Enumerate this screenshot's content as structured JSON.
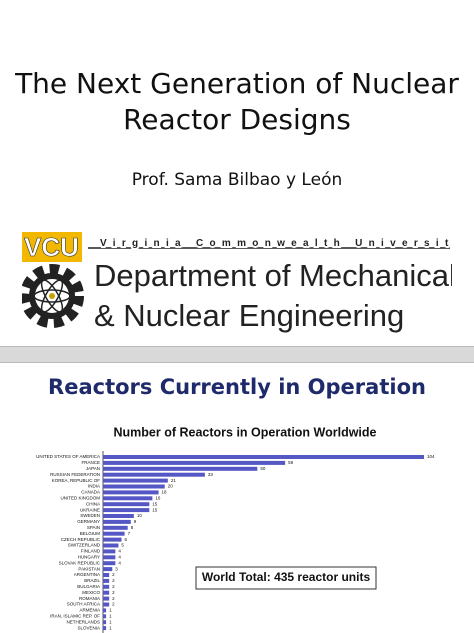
{
  "slides": [
    {
      "title": "The Next Generation of Nuclear Reactor Designs",
      "author": "Prof. Sama Bilbao y León",
      "logo": {
        "mark": "VCU",
        "university": "Virginia Commonwealth University",
        "line1": "Department of Mechanical",
        "line2": "& Nuclear Engineering"
      }
    },
    {
      "title": "Reactors Currently in Operation"
    }
  ],
  "chart_data": {
    "type": "hbar",
    "title": "Number of Reactors in Operation Worldwide",
    "annotation": "World Total:  435 reactor units",
    "color": "#5457c4",
    "categories": [
      "UNITED STATES OF AMERICA",
      "FRANCE",
      "JAPAN",
      "RUSSIAN FEDERATION",
      "KOREA, REPUBLIC OF",
      "INDIA",
      "CANADA",
      "UNITED KINGDOM",
      "CHINA",
      "UKRAINE",
      "SWEDEN",
      "GERMANY",
      "SPAIN",
      "BELGIUM",
      "CZECH REPUBLIC",
      "SWITZERLAND",
      "FINLAND",
      "HUNGARY",
      "SLOVAK REPUBLIC",
      "PAKISTAN",
      "ARGENTINA",
      "BRAZIL",
      "BULGARIA",
      "MEXICO",
      "ROMANIA",
      "SOUTH AFRICA",
      "ARMENIA",
      "IRAN, ISLAMIC REP. OF",
      "NETHERLANDS",
      "SLOVENIA"
    ],
    "values": [
      104,
      59,
      50,
      33,
      21,
      20,
      18,
      16,
      15,
      15,
      10,
      9,
      8,
      7,
      6,
      5,
      4,
      4,
      4,
      3,
      2,
      2,
      2,
      2,
      2,
      2,
      1,
      1,
      1,
      1
    ]
  }
}
